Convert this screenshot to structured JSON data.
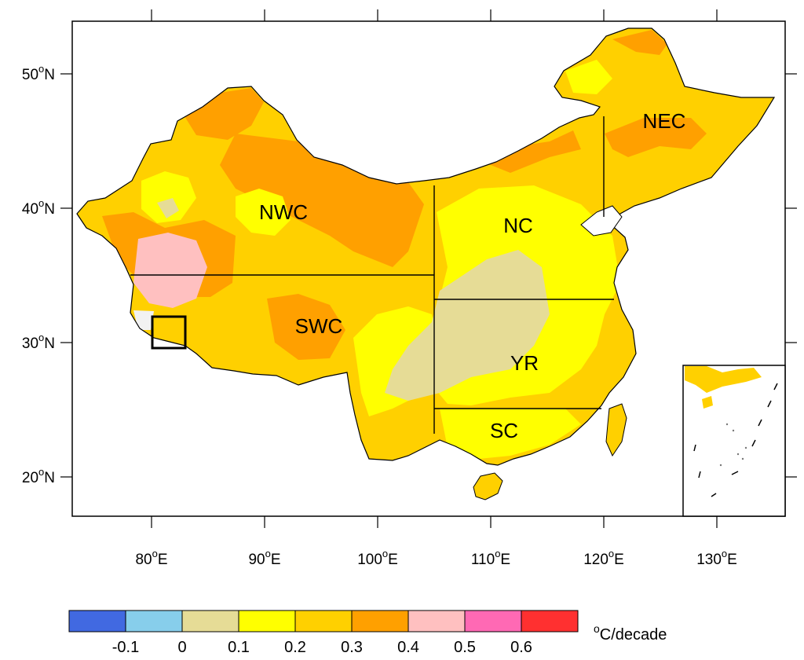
{
  "map": {
    "lon_ticks": [
      {
        "value": 80,
        "deg": "80",
        "hemi": "E"
      },
      {
        "value": 90,
        "deg": "90",
        "hemi": "E"
      },
      {
        "value": 100,
        "deg": "100",
        "hemi": "E"
      },
      {
        "value": 110,
        "deg": "110",
        "hemi": "E"
      },
      {
        "value": 120,
        "deg": "120",
        "hemi": "E"
      },
      {
        "value": 130,
        "deg": "130",
        "hemi": "E"
      }
    ],
    "lat_ticks": [
      {
        "value": 50,
        "deg": "50",
        "hemi": "N"
      },
      {
        "value": 40,
        "deg": "40",
        "hemi": "N"
      },
      {
        "value": 30,
        "deg": "30",
        "hemi": "N"
      },
      {
        "value": 20,
        "deg": "20",
        "hemi": "N"
      }
    ],
    "regions": [
      {
        "label": "NWC"
      },
      {
        "label": "NEC"
      },
      {
        "label": "NC"
      },
      {
        "label": "SWC"
      },
      {
        "label": "YR"
      },
      {
        "label": "SC"
      }
    ]
  },
  "colorbar": {
    "colors": [
      "#4169e1",
      "#87ceeb",
      "#e6dc96",
      "#ffff00",
      "#ffd000",
      "#ffa000",
      "#ffc0c0",
      "#ff69b4",
      "#ff3030"
    ],
    "labels": [
      "-0.1",
      "0",
      "0.1",
      "0.2",
      "0.3",
      "0.4",
      "0.5",
      "0.6"
    ],
    "unit_super": "o",
    "unit_text": "C/decade"
  }
}
